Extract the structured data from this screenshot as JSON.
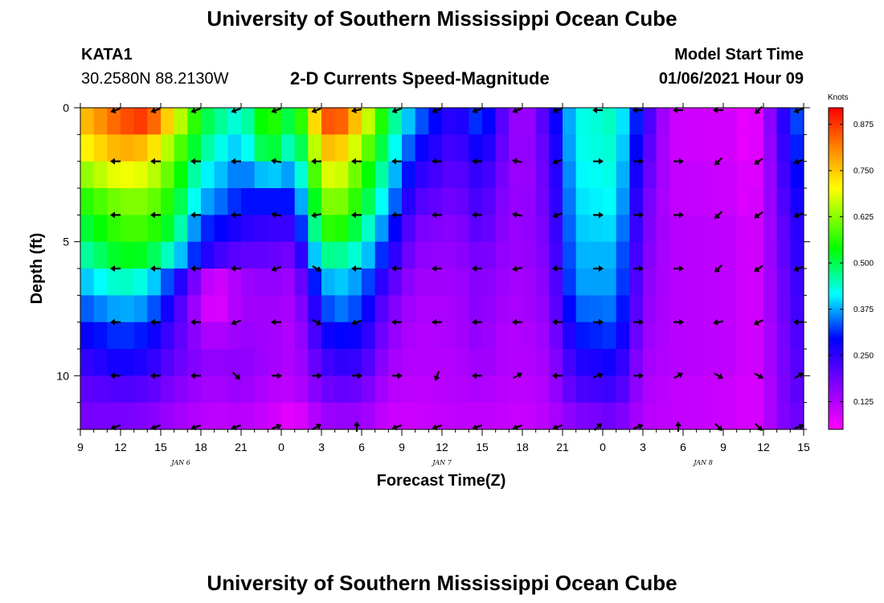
{
  "page": {
    "title_top": "University of Southern Mississippi Ocean Cube",
    "title_bottom": "University of Southern Mississippi Ocean Cube",
    "station": "KATA1",
    "coords": "30.2580N 88.2130W",
    "subtitle": "2-D Currents Speed-Magnitude",
    "model_start_label": "Model Start Time",
    "model_start_value": "01/06/2021 Hour 09"
  },
  "chart_data": {
    "type": "heatmap",
    "title": "2-D Currents Speed-Magnitude",
    "xlabel": "Forecast Time(Z)",
    "ylabel": "Depth (ft)",
    "colorbar_label": "Knots",
    "colorbar_ticks": [
      "0.125",
      "0.250",
      "0.375",
      "0.500",
      "0.625",
      "0.750",
      "0.875"
    ],
    "colorbar_range": [
      0.05,
      0.92
    ],
    "ylim": [
      0,
      12
    ],
    "y_inverted": true,
    "y_ticks": [
      0,
      5,
      10
    ],
    "x_tick_labels": [
      "9",
      "12",
      "15",
      "18",
      "21",
      "0",
      "3",
      "6",
      "9",
      "12",
      "15",
      "18",
      "21",
      "0",
      "3",
      "6",
      "9",
      "12",
      "15"
    ],
    "date_labels": [
      {
        "text": "JAN 6",
        "tick_index": 2.5
      },
      {
        "text": "JAN 7",
        "tick_index": 9
      },
      {
        "text": "JAN 8",
        "tick_index": 15.5
      }
    ],
    "time_hours_start": 0,
    "time_hours_step": 1,
    "depth_levels_ft": [
      0,
      1,
      2,
      3,
      4,
      5,
      6,
      7,
      8,
      9,
      10,
      11,
      12
    ],
    "keyframes": [
      {
        "t": 0,
        "speeds": [
          0.75,
          0.7,
          0.62,
          0.55,
          0.5,
          0.45,
          0.38,
          0.33,
          0.28,
          0.24,
          0.2,
          0.18
        ]
      },
      {
        "t": 3,
        "speeds": [
          0.85,
          0.78,
          0.7,
          0.62,
          0.58,
          0.53,
          0.45,
          0.38,
          0.32,
          0.28,
          0.22,
          0.18
        ]
      },
      {
        "t": 5,
        "speeds": [
          0.88,
          0.76,
          0.68,
          0.62,
          0.58,
          0.52,
          0.42,
          0.36,
          0.3,
          0.26,
          0.21,
          0.17
        ]
      },
      {
        "t": 7,
        "speeds": [
          0.7,
          0.62,
          0.58,
          0.54,
          0.5,
          0.42,
          0.3,
          0.25,
          0.22,
          0.2,
          0.17,
          0.14
        ]
      },
      {
        "t": 9,
        "speeds": [
          0.52,
          0.48,
          0.42,
          0.38,
          0.32,
          0.28,
          0.14,
          0.11,
          0.14,
          0.16,
          0.14,
          0.12
        ]
      },
      {
        "t": 10,
        "speeds": [
          0.48,
          0.44,
          0.4,
          0.36,
          0.3,
          0.24,
          0.08,
          0.07,
          0.12,
          0.15,
          0.13,
          0.11
        ]
      },
      {
        "t": 12,
        "speeds": [
          0.42,
          0.38,
          0.34,
          0.3,
          0.26,
          0.2,
          0.14,
          0.14,
          0.15,
          0.16,
          0.15,
          0.12
        ]
      },
      {
        "t": 14,
        "speeds": [
          0.58,
          0.54,
          0.4,
          0.3,
          0.24,
          0.2,
          0.16,
          0.14,
          0.14,
          0.14,
          0.12,
          0.1
        ]
      },
      {
        "t": 16,
        "speeds": [
          0.48,
          0.42,
          0.36,
          0.3,
          0.24,
          0.18,
          0.14,
          0.13,
          0.12,
          0.12,
          0.11,
          0.07
        ]
      },
      {
        "t": 18,
        "speeds": [
          0.82,
          0.74,
          0.66,
          0.6,
          0.55,
          0.46,
          0.36,
          0.3,
          0.26,
          0.22,
          0.18,
          0.14
        ]
      },
      {
        "t": 19,
        "speeds": [
          0.88,
          0.78,
          0.7,
          0.64,
          0.58,
          0.48,
          0.4,
          0.36,
          0.3,
          0.25,
          0.2,
          0.15
        ]
      },
      {
        "t": 21,
        "speeds": [
          0.72,
          0.64,
          0.58,
          0.54,
          0.48,
          0.42,
          0.36,
          0.32,
          0.28,
          0.24,
          0.19,
          0.15
        ]
      },
      {
        "t": 23,
        "speeds": [
          0.5,
          0.46,
          0.42,
          0.38,
          0.33,
          0.28,
          0.22,
          0.18,
          0.16,
          0.14,
          0.12,
          0.1
        ]
      },
      {
        "t": 25,
        "speeds": [
          0.35,
          0.3,
          0.26,
          0.22,
          0.18,
          0.16,
          0.14,
          0.13,
          0.12,
          0.12,
          0.11,
          0.1
        ]
      },
      {
        "t": 28,
        "speeds": [
          0.24,
          0.22,
          0.2,
          0.18,
          0.16,
          0.15,
          0.14,
          0.13,
          0.13,
          0.12,
          0.12,
          0.11
        ]
      },
      {
        "t": 30,
        "speeds": [
          0.34,
          0.3,
          0.26,
          0.24,
          0.22,
          0.19,
          0.17,
          0.17,
          0.16,
          0.15,
          0.13,
          0.11
        ]
      },
      {
        "t": 31,
        "speeds": [
          0.24,
          0.22,
          0.2,
          0.18,
          0.17,
          0.16,
          0.15,
          0.14,
          0.13,
          0.13,
          0.12,
          0.11
        ]
      },
      {
        "t": 33,
        "speeds": [
          0.12,
          0.13,
          0.13,
          0.14,
          0.14,
          0.14,
          0.13,
          0.13,
          0.12,
          0.12,
          0.11,
          0.1
        ]
      },
      {
        "t": 35,
        "speeds": [
          0.24,
          0.22,
          0.21,
          0.2,
          0.19,
          0.18,
          0.17,
          0.16,
          0.15,
          0.14,
          0.13,
          0.12
        ]
      },
      {
        "t": 37,
        "speeds": [
          0.42,
          0.42,
          0.41,
          0.4,
          0.39,
          0.38,
          0.37,
          0.34,
          0.3,
          0.26,
          0.22,
          0.17
        ]
      },
      {
        "t": 40,
        "speeds": [
          0.45,
          0.44,
          0.43,
          0.42,
          0.4,
          0.38,
          0.37,
          0.35,
          0.32,
          0.28,
          0.24,
          0.19
        ]
      },
      {
        "t": 42,
        "speeds": [
          0.26,
          0.24,
          0.22,
          0.2,
          0.19,
          0.18,
          0.17,
          0.16,
          0.15,
          0.14,
          0.13,
          0.12
        ]
      },
      {
        "t": 44,
        "speeds": [
          0.1,
          0.1,
          0.11,
          0.11,
          0.12,
          0.12,
          0.12,
          0.12,
          0.12,
          0.12,
          0.11,
          0.11
        ]
      },
      {
        "t": 49,
        "speeds": [
          0.09,
          0.09,
          0.1,
          0.1,
          0.11,
          0.11,
          0.11,
          0.11,
          0.11,
          0.11,
          0.1,
          0.1
        ]
      },
      {
        "t": 50,
        "speeds": [
          0.06,
          0.06,
          0.07,
          0.07,
          0.08,
          0.08,
          0.08,
          0.08,
          0.08,
          0.08,
          0.08,
          0.08
        ]
      },
      {
        "t": 51,
        "speeds": [
          0.1,
          0.1,
          0.1,
          0.11,
          0.11,
          0.11,
          0.11,
          0.11,
          0.11,
          0.11,
          0.1,
          0.1
        ]
      },
      {
        "t": 52,
        "speeds": [
          0.22,
          0.21,
          0.2,
          0.19,
          0.18,
          0.18,
          0.17,
          0.17,
          0.16,
          0.16,
          0.16,
          0.16
        ]
      },
      {
        "t": 54,
        "speeds": [
          0.36,
          0.34,
          0.32,
          0.3,
          0.28,
          0.27,
          0.26,
          0.25,
          0.24,
          0.23,
          0.22,
          0.2
        ]
      }
    ],
    "arrows": {
      "depths_ft": [
        0,
        2,
        4,
        6,
        8,
        10,
        12
      ],
      "times_hours": [
        0,
        3,
        6,
        9,
        12,
        15,
        18,
        21,
        24,
        27,
        30,
        33,
        36,
        39,
        42,
        45,
        48,
        51,
        54
      ],
      "directions_deg_by_depth": [
        [
          200,
          200,
          200,
          200,
          200,
          200,
          190,
          200,
          200,
          200,
          200,
          200,
          180,
          180,
          180,
          180,
          225,
          200,
          180
        ],
        [
          180,
          180,
          180,
          180,
          170,
          180,
          180,
          180,
          180,
          180,
          170,
          200,
          0,
          0,
          0,
          225,
          215,
          200,
          180
        ],
        [
          180,
          180,
          180,
          180,
          170,
          190,
          180,
          180,
          180,
          180,
          170,
          200,
          0,
          0,
          0,
          225,
          215,
          200,
          180
        ],
        [
          180,
          180,
          180,
          180,
          200,
          330,
          180,
          180,
          180,
          180,
          190,
          180,
          0,
          0,
          0,
          225,
          215,
          200,
          180
        ],
        [
          180,
          180,
          180,
          200,
          180,
          330,
          200,
          180,
          180,
          180,
          180,
          180,
          0,
          0,
          0,
          190,
          205,
          180,
          180
        ],
        [
          180,
          180,
          180,
          315,
          0,
          0,
          0,
          0,
          250,
          180,
          30,
          180,
          20,
          0,
          30,
          330,
          330,
          30,
          180
        ],
        [
          200,
          200,
          200,
          200,
          20,
          30,
          90,
          200,
          200,
          200,
          200,
          200,
          45,
          20,
          90,
          315,
          315,
          20,
          200
        ]
      ]
    }
  }
}
